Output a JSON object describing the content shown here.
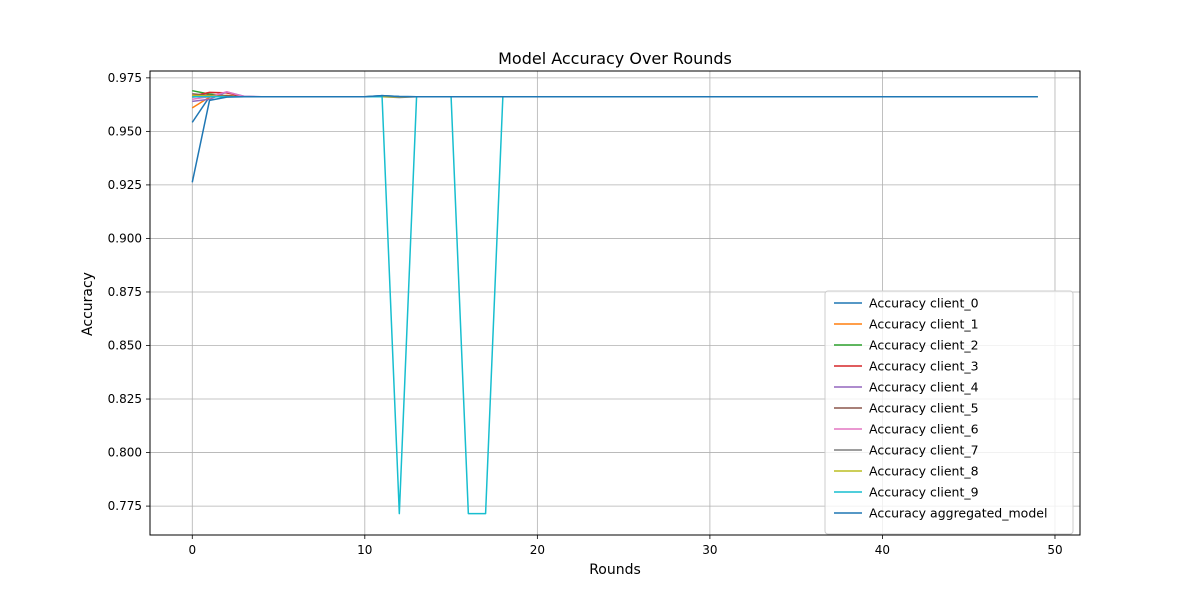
{
  "chart_data": {
    "type": "line",
    "title": "Model Accuracy Over Rounds",
    "xlabel": "Rounds",
    "ylabel": "Accuracy",
    "xlim": [
      -2.45,
      51.45
    ],
    "ylim": [
      0.7615,
      0.9782
    ],
    "xticks": [
      0,
      10,
      20,
      30,
      40,
      50
    ],
    "yticks": [
      0.775,
      0.8,
      0.825,
      0.85,
      0.875,
      0.9,
      0.925,
      0.95,
      0.975
    ],
    "xtick_labels": [
      "0",
      "10",
      "20",
      "30",
      "40",
      "50"
    ],
    "ytick_labels": [
      "0.775",
      "0.800",
      "0.825",
      "0.850",
      "0.875",
      "0.900",
      "0.925",
      "0.950",
      "0.975"
    ],
    "grid": true,
    "legend_position": "lower-right",
    "rounds": 50,
    "plateau": 0.9662,
    "series": [
      {
        "name": "Accuracy client_0",
        "color": "#1f77b4",
        "points": [
          [
            0,
            0.9542
          ],
          [
            1,
            0.9662
          ],
          [
            2,
            0.9663
          ],
          [
            3,
            0.9662
          ],
          [
            10,
            0.9662
          ],
          [
            11,
            0.9667
          ],
          [
            12,
            0.9663
          ],
          [
            13,
            0.9662
          ],
          [
            49,
            0.9662
          ]
        ]
      },
      {
        "name": "Accuracy client_1",
        "color": "#ff7f0e",
        "points": [
          [
            0,
            0.961
          ],
          [
            1,
            0.966
          ],
          [
            2,
            0.9668
          ],
          [
            3,
            0.9662
          ],
          [
            10,
            0.9662
          ],
          [
            11,
            0.9662
          ],
          [
            49,
            0.9662
          ]
        ]
      },
      {
        "name": "Accuracy client_2",
        "color": "#2ca02c",
        "points": [
          [
            0,
            0.969
          ],
          [
            1,
            0.9674
          ],
          [
            2,
            0.9666
          ],
          [
            3,
            0.9662
          ],
          [
            10,
            0.9662
          ],
          [
            11,
            0.9664
          ],
          [
            12,
            0.9662
          ],
          [
            49,
            0.9662
          ]
        ]
      },
      {
        "name": "Accuracy client_3",
        "color": "#d62728",
        "points": [
          [
            0,
            0.9665
          ],
          [
            1,
            0.9682
          ],
          [
            2,
            0.968
          ],
          [
            3,
            0.9662
          ],
          [
            49,
            0.9662
          ]
        ]
      },
      {
        "name": "Accuracy client_4",
        "color": "#9467bd",
        "points": [
          [
            0,
            0.964
          ],
          [
            1,
            0.965
          ],
          [
            2,
            0.9684
          ],
          [
            3,
            0.9664
          ],
          [
            4,
            0.9662
          ],
          [
            49,
            0.9662
          ]
        ]
      },
      {
        "name": "Accuracy client_5",
        "color": "#8c564b",
        "points": [
          [
            0,
            0.9675
          ],
          [
            1,
            0.9668
          ],
          [
            2,
            0.9666
          ],
          [
            3,
            0.9662
          ],
          [
            49,
            0.9662
          ]
        ]
      },
      {
        "name": "Accuracy client_6",
        "color": "#e377c2",
        "points": [
          [
            0,
            0.965
          ],
          [
            1,
            0.9662
          ],
          [
            2,
            0.9685
          ],
          [
            3,
            0.9662
          ],
          [
            49,
            0.9662
          ]
        ]
      },
      {
        "name": "Accuracy client_7",
        "color": "#7f7f7f",
        "points": [
          [
            0,
            0.966
          ],
          [
            1,
            0.9667
          ],
          [
            2,
            0.9662
          ],
          [
            11,
            0.9662
          ],
          [
            12,
            0.9658
          ],
          [
            13,
            0.9662
          ],
          [
            49,
            0.9662
          ]
        ]
      },
      {
        "name": "Accuracy client_8",
        "color": "#bcbd22",
        "points": [
          [
            0,
            0.9668
          ],
          [
            1,
            0.9665
          ],
          [
            2,
            0.9662
          ],
          [
            49,
            0.9662
          ]
        ]
      },
      {
        "name": "Accuracy client_9",
        "color": "#17becf",
        "points": [
          [
            0,
            0.9662
          ],
          [
            10,
            0.9662
          ],
          [
            11,
            0.9662
          ],
          [
            12,
            0.7715
          ],
          [
            13,
            0.9662
          ],
          [
            15,
            0.9662
          ],
          [
            16,
            0.7715
          ],
          [
            17,
            0.7715
          ],
          [
            18,
            0.9662
          ],
          [
            49,
            0.9662
          ]
        ]
      },
      {
        "name": "Accuracy aggregated_model",
        "color": "#1f77b4",
        "points": [
          [
            0,
            0.9262
          ],
          [
            1,
            0.9645
          ],
          [
            2,
            0.966
          ],
          [
            3,
            0.9662
          ],
          [
            10,
            0.9662
          ],
          [
            11,
            0.9667
          ],
          [
            12,
            0.9663
          ],
          [
            13,
            0.9662
          ],
          [
            49,
            0.9662
          ]
        ]
      }
    ]
  }
}
